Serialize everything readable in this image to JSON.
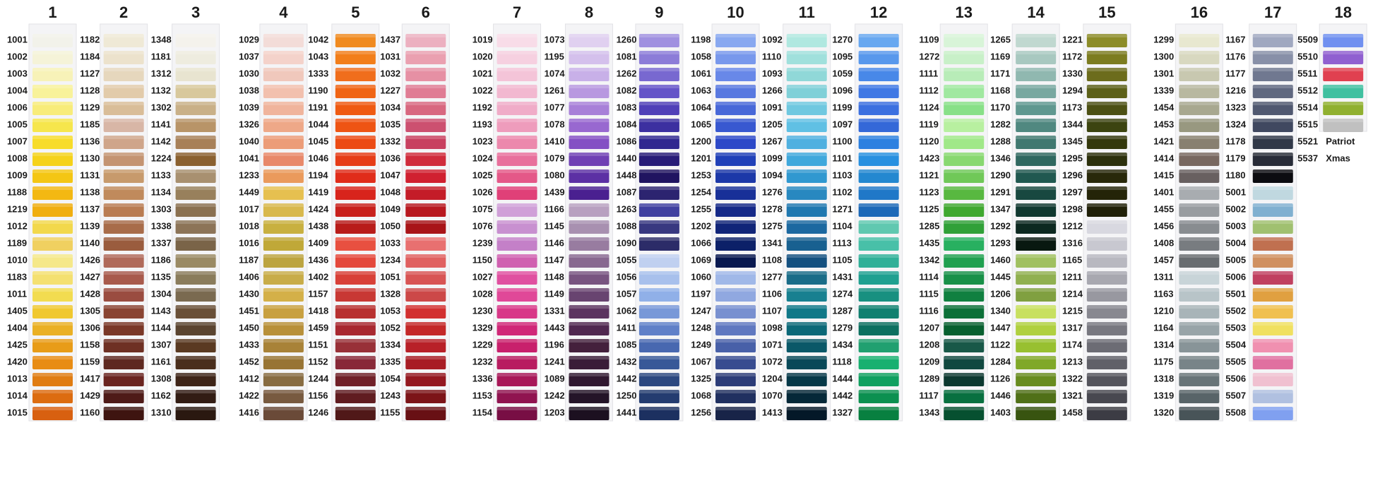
{
  "columns": [
    {
      "number": 1,
      "codes": [
        1001,
        1002,
        1003,
        1004,
        1006,
        1005,
        1007,
        1008,
        1009,
        1188,
        1219,
        1012,
        1189,
        1010,
        1183,
        1011,
        1405,
        1404,
        1425,
        1420,
        1013,
        1014,
        1015
      ],
      "colors": [
        "#f2f2ea",
        "#f5f3d8",
        "#f7f2b8",
        "#f8f29a",
        "#f8ec7a",
        "#f6e64c",
        "#f7dc2a",
        "#f5d21a",
        "#f4c614",
        "#f3b812",
        "#f0ae10",
        "#f2d84c",
        "#f0d060",
        "#f5e88a",
        "#f4e070",
        "#f2dc50",
        "#f0c830",
        "#eab024",
        "#e89c18",
        "#e88c14",
        "#e07c12",
        "#dc6c10",
        "#d86010"
      ]
    },
    {
      "number": 2,
      "codes": [
        1182,
        1184,
        1127,
        1128,
        1129,
        1185,
        1136,
        1130,
        1131,
        1138,
        1137,
        1139,
        1140,
        1426,
        1427,
        1428,
        1305,
        1306,
        1158,
        1159,
        1417,
        1429,
        1160
      ],
      "colors": [
        "#efe9d6",
        "#ece2cc",
        "#e6d7bd",
        "#e2cbaa",
        "#d9bd98",
        "#d8b6a6",
        "#cfa58a",
        "#c49472",
        "#c79a6c",
        "#c08a5c",
        "#b97c52",
        "#a86c4a",
        "#9a5c3e",
        "#b06a5a",
        "#a85a4c",
        "#9a4c40",
        "#8a4432",
        "#7a3828",
        "#6e3024",
        "#5e2820",
        "#6a2420",
        "#4e1a18",
        "#3e1410"
      ]
    },
    {
      "number": 3,
      "codes": [
        1348,
        1181,
        1312,
        1132,
        1302,
        1141,
        1142,
        1224,
        1133,
        1134,
        1303,
        1338,
        1337,
        1186,
        1135,
        1304,
        1143,
        1144,
        1307,
        1161,
        1308,
        1162,
        1310
      ],
      "colors": [
        "#f4f2ec",
        "#eeecdf",
        "#e8e4d0",
        "#d8c89c",
        "#c9b088",
        "#b89468",
        "#a88058",
        "#8a6030",
        "#a89070",
        "#98805c",
        "#8a7050",
        "#8c7458",
        "#7a6448",
        "#9a8a64",
        "#8a7c5c",
        "#7a6a50",
        "#6a5038",
        "#5a4430",
        "#5a3a22",
        "#4a2e1c",
        "#3e2418",
        "#321c14",
        "#2a1810"
      ]
    },
    {
      "number": 4,
      "codes": [
        1029,
        1037,
        1030,
        1038,
        1039,
        1326,
        1040,
        1041,
        1233,
        1449,
        1017,
        1018,
        1016,
        1187,
        1406,
        1430,
        1451,
        1450,
        1433,
        1452,
        1412,
        1422,
        1416
      ],
      "colors": [
        "#f3dcd8",
        "#f4d2ca",
        "#f0c8bc",
        "#f2c0ae",
        "#f0b49c",
        "#eea888",
        "#ec9c78",
        "#e8886a",
        "#ea9a5c",
        "#e6c050",
        "#d8b84c",
        "#c8b040",
        "#c0a838",
        "#bca440",
        "#c8ac48",
        "#d4b048",
        "#c8a040",
        "#b8903a",
        "#a88238",
        "#987434",
        "#886c42",
        "#785a40",
        "#6a4a38"
      ]
    },
    {
      "number": 5,
      "codes": [
        1042,
        1043,
        1333,
        1190,
        1191,
        1044,
        1045,
        1046,
        1194,
        1419,
        1424,
        1438,
        1409,
        1436,
        1402,
        1157,
        1418,
        1459,
        1151,
        1152,
        1244,
        1156,
        1246
      ],
      "colors": [
        "#f08a20",
        "#f27e1a",
        "#f06e1c",
        "#f06414",
        "#ef5a12",
        "#ee5414",
        "#ec4a14",
        "#e63c18",
        "#e02c1a",
        "#d8241c",
        "#c8201c",
        "#b81c1a",
        "#e85040",
        "#e4483c",
        "#d84038",
        "#c83834",
        "#b83030",
        "#a82830",
        "#983038",
        "#882838",
        "#702028",
        "#601c20",
        "#501818"
      ]
    },
    {
      "number": 6,
      "codes": [
        1437,
        1031,
        1032,
        1227,
        1034,
        1035,
        1332,
        1036,
        1047,
        1048,
        1049,
        1050,
        1033,
        1234,
        1051,
        1328,
        1053,
        1052,
        1334,
        1335,
        1054,
        1243,
        1155
      ],
      "colors": [
        "#ecb0c0",
        "#eaa0b0",
        "#e690a4",
        "#e07c94",
        "#d86880",
        "#cc5070",
        "#c84060",
        "#d02c3c",
        "#d02030",
        "#c41c28",
        "#b81820",
        "#a81418",
        "#e87070",
        "#e06060",
        "#d85454",
        "#cc4848",
        "#d23030",
        "#c42828",
        "#b82028",
        "#a81c24",
        "#941820",
        "#7c1418",
        "#681014"
      ]
    },
    {
      "number": 7,
      "codes": [
        1019,
        1020,
        1021,
        1022,
        1192,
        1193,
        1023,
        1024,
        1025,
        1026,
        1075,
        1076,
        1239,
        1150,
        1027,
        1028,
        1230,
        1329,
        1229,
        1232,
        1336,
        1153,
        1154
      ],
      "colors": [
        "#f8dce8",
        "#f6d0e0",
        "#f4c4d8",
        "#f2b8d0",
        "#f0acc8",
        "#ee9cbc",
        "#ec88ac",
        "#e8709c",
        "#e45888",
        "#e04078",
        "#d0a0d8",
        "#c890d0",
        "#c480c8",
        "#d060b0",
        "#e050a0",
        "#e04898",
        "#d83888",
        "#d02878",
        "#c8206c",
        "#b81c60",
        "#a81858",
        "#901450",
        "#780e44"
      ]
    },
    {
      "number": 8,
      "codes": [
        1073,
        1195,
        1074,
        1261,
        1077,
        1078,
        1410,
        1079,
        1080,
        1439,
        1166,
        1145,
        1146,
        1147,
        1148,
        1149,
        1331,
        1443,
        1196,
        1241,
        1089,
        1242,
        1203
      ],
      "colors": [
        "#e0d0f0",
        "#d4c0ec",
        "#c8b0e8",
        "#b898e0",
        "#a880d8",
        "#9868d0",
        "#8450c4",
        "#7040b4",
        "#5c30a4",
        "#4a2090",
        "#b8a0c0",
        "#a890b0",
        "#987ca0",
        "#886890",
        "#785480",
        "#684470",
        "#5c3460",
        "#502850",
        "#44203c",
        "#3a1c38",
        "#301830",
        "#241428",
        "#1c1020"
      ]
    },
    {
      "number": 9,
      "codes": [
        1260,
        1081,
        1262,
        1082,
        1083,
        1084,
        1086,
        1440,
        1448,
        1087,
        1263,
        1088,
        1090,
        1055,
        1056,
        1057,
        1062,
        1411,
        1085,
        1432,
        1442,
        1250,
        1441
      ],
      "colors": [
        "#a090e0",
        "#8c7cd8",
        "#7868d0",
        "#6454c8",
        "#5040b8",
        "#3c30a0",
        "#302890",
        "#281c78",
        "#201460",
        "#2c2470",
        "#4040a0",
        "#383880",
        "#2c2c68",
        "#c0d0f0",
        "#a8c0ec",
        "#90b0e8",
        "#7898d8",
        "#6080c8",
        "#4868b0",
        "#385898",
        "#2c4880",
        "#243c70",
        "#1c3060"
      ]
    },
    {
      "number": 10,
      "codes": [
        1198,
        1058,
        1061,
        1063,
        1064,
        1065,
        1200,
        1201,
        1253,
        1254,
        1255,
        1202,
        1066,
        1069,
        1060,
        1197,
        1247,
        1248,
        1249,
        1067,
        1325,
        1068,
        1256
      ],
      "colors": [
        "#88a8f0",
        "#7898ec",
        "#6888e8",
        "#5878e0",
        "#4868d8",
        "#3858d0",
        "#2c48c8",
        "#2040b8",
        "#1c38a8",
        "#183098",
        "#142888",
        "#102478",
        "#0c2068",
        "#081850",
        "#a0b8e8",
        "#90a8e0",
        "#7890d0",
        "#6078c0",
        "#4860a8",
        "#384c90",
        "#2c3c78",
        "#203060",
        "#182448"
      ]
    },
    {
      "number": 11,
      "codes": [
        1092,
        1110,
        1093,
        1266,
        1091,
        1205,
        1267,
        1099,
        1094,
        1276,
        1278,
        1275,
        1341,
        1108,
        1277,
        1106,
        1107,
        1098,
        1071,
        1072,
        1204,
        1070,
        1413
      ],
      "colors": [
        "#b0e8e0",
        "#a0e0dc",
        "#90d8d8",
        "#80d0d8",
        "#70c8e0",
        "#60c0e4",
        "#50b0e0",
        "#40a8dc",
        "#3098d0",
        "#2888c0",
        "#2078b0",
        "#1c68a0",
        "#186090",
        "#145080",
        "#1a6c88",
        "#188090",
        "#107888",
        "#0c6878",
        "#0a5868",
        "#084858",
        "#063848",
        "#052838",
        "#041828"
      ]
    },
    {
      "number": 12,
      "codes": [
        1270,
        1095,
        1059,
        1096,
        1199,
        1097,
        1100,
        1101,
        1103,
        1102,
        1271,
        1104,
        1113,
        1105,
        1431,
        1274,
        1287,
        1279,
        1434,
        1118,
        1444,
        1442,
        1327
      ],
      "colors": [
        "#68a8f0",
        "#5898ec",
        "#4888e8",
        "#4078e4",
        "#3c70e0",
        "#3468d8",
        "#2c80e0",
        "#2890e0",
        "#2488d0",
        "#2078c8",
        "#1c68b8",
        "#60c8b0",
        "#48c0a8",
        "#30b098",
        "#20a090",
        "#189080",
        "#108070",
        "#0c7060",
        "#20a070",
        "#18b070",
        "#10a060",
        "#0c9050",
        "#088040"
      ]
    },
    {
      "number": 13,
      "codes": [
        1109,
        1272,
        1111,
        1112,
        1124,
        1119,
        1120,
        1423,
        1121,
        1123,
        1125,
        1285,
        1435,
        1342,
        1114,
        1115,
        1116,
        1207,
        1208,
        1209,
        1289,
        1117,
        1343
      ],
      "colors": [
        "#d8f4d8",
        "#c8f0c8",
        "#b8ecb8",
        "#a0e8a0",
        "#88e088",
        "#b8f0a0",
        "#a0e888",
        "#88d870",
        "#70c858",
        "#58b840",
        "#40a830",
        "#30a038",
        "#28b060",
        "#20a050",
        "#189048",
        "#108040",
        "#0c7038",
        "#086030",
        "#185848",
        "#104840",
        "#0c3830",
        "#087040",
        "#065030"
      ]
    },
    {
      "number": 14,
      "codes": [
        1265,
        1169,
        1171,
        1168,
        1170,
        1282,
        1288,
        1346,
        1290,
        1291,
        1347,
        1292,
        1293,
        1460,
        1445,
        1206,
        1340,
        1447,
        1122,
        1284,
        1126,
        1446,
        1403
      ],
      "colors": [
        "#c0d8d0",
        "#a8c8c0",
        "#90b8b0",
        "#78a8a0",
        "#609890",
        "#508880",
        "#407870",
        "#306860",
        "#205850",
        "#184840",
        "#103830",
        "#0c2820",
        "#081810",
        "#a0c060",
        "#90b050",
        "#80a040",
        "#c8e060",
        "#b0d040",
        "#98c030",
        "#80a828",
        "#688c20",
        "#507018",
        "#385410"
      ]
    },
    {
      "number": 15,
      "codes": [
        1221,
        1172,
        1330,
        1294,
        1173,
        1344,
        1345,
        1295,
        1296,
        1297,
        1298,
        1212,
        1316,
        1165,
        1211,
        1214,
        1215,
        1317,
        1174,
        1213,
        1322,
        1321,
        1458
      ],
      "colors": [
        "#8c8c28",
        "#7c7c20",
        "#6c6c1c",
        "#5c6018",
        "#4c5014",
        "#3c4410",
        "#34380c",
        "#2c300c",
        "#28280a",
        "#242408",
        "#202008",
        "#d8d8e0",
        "#c8c8d0",
        "#b8b8c0",
        "#a8a8b0",
        "#9898a0",
        "#888890",
        "#787880",
        "#6c6c74",
        "#606068",
        "#54545c",
        "#484850",
        "#3c3c44"
      ]
    },
    {
      "number": 16,
      "codes": [
        1299,
        1300,
        1301,
        1339,
        1454,
        1453,
        1421,
        1414,
        1415,
        1401,
        1455,
        1456,
        1408,
        1457,
        1311,
        1163,
        1210,
        1164,
        1314,
        1175,
        1318,
        1319,
        1320
      ],
      "colors": [
        "#e8e8d0",
        "#d8d8c0",
        "#c8c8b0",
        "#b8b8a0",
        "#a8a890",
        "#989880",
        "#888070",
        "#786860",
        "#686060",
        "#a8acb0",
        "#989ca0",
        "#888c90",
        "#787c80",
        "#686c70",
        "#c8d4d8",
        "#b8c4c8",
        "#a8b4b8",
        "#98a4a8",
        "#889498",
        "#788488",
        "#687478",
        "#586468",
        "#485458"
      ]
    },
    {
      "number": 17,
      "codes": [
        1167,
        1176,
        1177,
        1216,
        1323,
        1324,
        1178,
        1179,
        1180,
        5001,
        5002,
        5003,
        5004,
        5005,
        5006,
        5501,
        5502,
        5503,
        5504,
        5505,
        5506,
        5507,
        5508
      ],
      "colors": [
        "#a0a8c0",
        "#8890a8",
        "#707890",
        "#606880",
        "#505870",
        "#404860",
        "#303848",
        "#282c38",
        "#0c0c10",
        "#c0d8e0",
        "#80b0d0",
        "#a0c070",
        "#c07050",
        "#d09060",
        "#c04060",
        "#e0a040",
        "#f0c050",
        "#f0e060",
        "#f090b0",
        "#e070a0",
        "#f0c0d0",
        "#b0c0e0",
        "#80a0f0"
      ]
    },
    {
      "number": 18,
      "codes": [
        5509,
        5510,
        5511,
        5512,
        5514,
        5515,
        5521,
        5537
      ],
      "colors": [
        "#7090f0",
        "#9060d0",
        "#e04050",
        "#40c0a0",
        "#90b030",
        "#c0c0c0",
        null,
        null
      ],
      "names": [
        null,
        null,
        null,
        null,
        null,
        null,
        "Patriot",
        "Xmas"
      ]
    }
  ]
}
